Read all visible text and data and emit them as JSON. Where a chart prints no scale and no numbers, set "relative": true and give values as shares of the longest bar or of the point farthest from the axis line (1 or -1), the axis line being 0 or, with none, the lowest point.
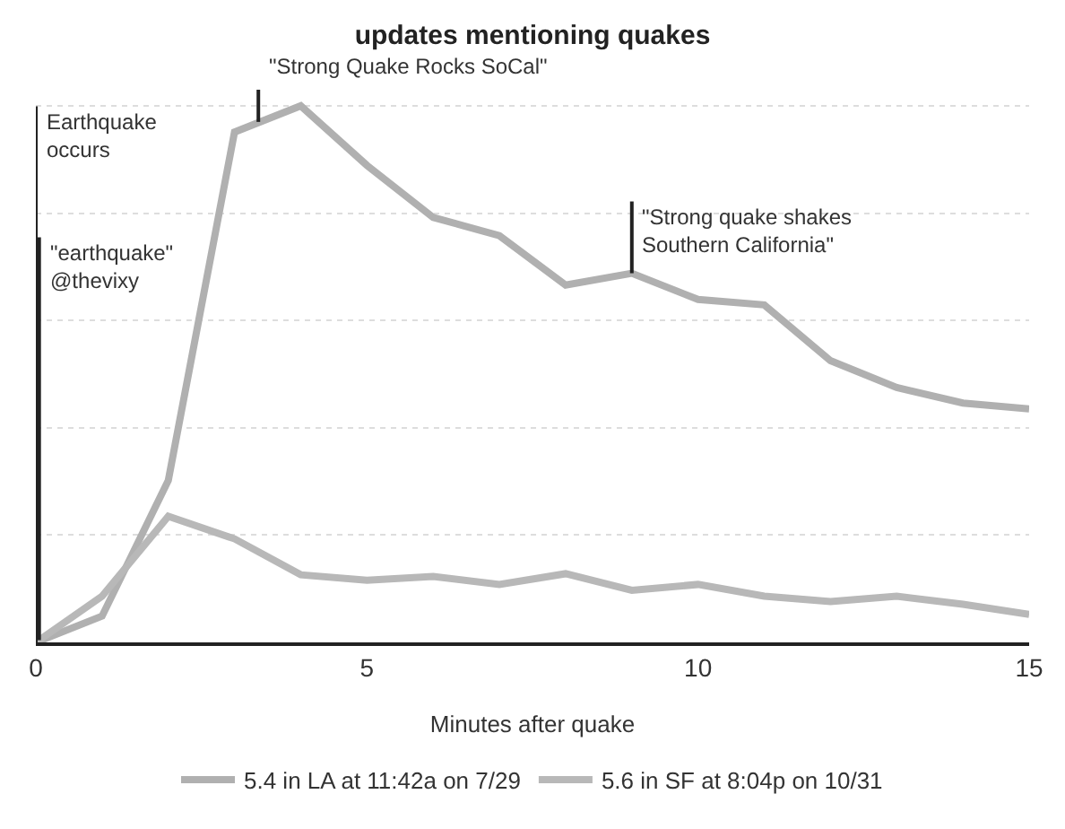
{
  "chart_data": {
    "type": "line",
    "title": "updates mentioning quakes",
    "xlabel": "Minutes after quake",
    "relative": true,
    "x": [
      0,
      1,
      2,
      3,
      4,
      5,
      6,
      7,
      8,
      9,
      10,
      11,
      12,
      13,
      14,
      15
    ],
    "series": [
      {
        "name": "5.4 in LA at 11:42a on 7/29",
        "color": "#b0b0b0",
        "values": [
          0,
          0.049,
          0.302,
          0.951,
          1,
          0.889,
          0.792,
          0.758,
          0.666,
          0.688,
          0.639,
          0.629,
          0.525,
          0.475,
          0.446,
          0.435
        ]
      },
      {
        "name": "5.6 in SF at 8:04p on 10/31",
        "color": "#b8b8b8",
        "values": [
          0,
          0.086,
          0.235,
          0.193,
          0.126,
          0.116,
          0.123,
          0.108,
          0.128,
          0.097,
          0.108,
          0.086,
          0.076,
          0.086,
          0.071,
          0.052
        ]
      }
    ],
    "xlim": [
      0,
      15
    ],
    "xticks": [
      0,
      5,
      10,
      15
    ],
    "grid": "y",
    "legend": "bottom",
    "marker": "none",
    "line_style": "solid",
    "annotations": [
      {
        "text": "\"earthquake\"\n@thevixy",
        "x": 0.05,
        "y": 0.755
      },
      {
        "text": "\"Strong Quake Rocks SoCal\"",
        "x": 3.36,
        "y": 0.97
      },
      {
        "text": "\"Strong quake shakes\nSouthern California\"",
        "x": 9,
        "y": 0.688
      }
    ],
    "ref_lines": [
      {
        "axis": "x",
        "value": 0,
        "label": "Earthquake\noccurs",
        "color": "#222222",
        "line_style": "solid"
      }
    ]
  }
}
